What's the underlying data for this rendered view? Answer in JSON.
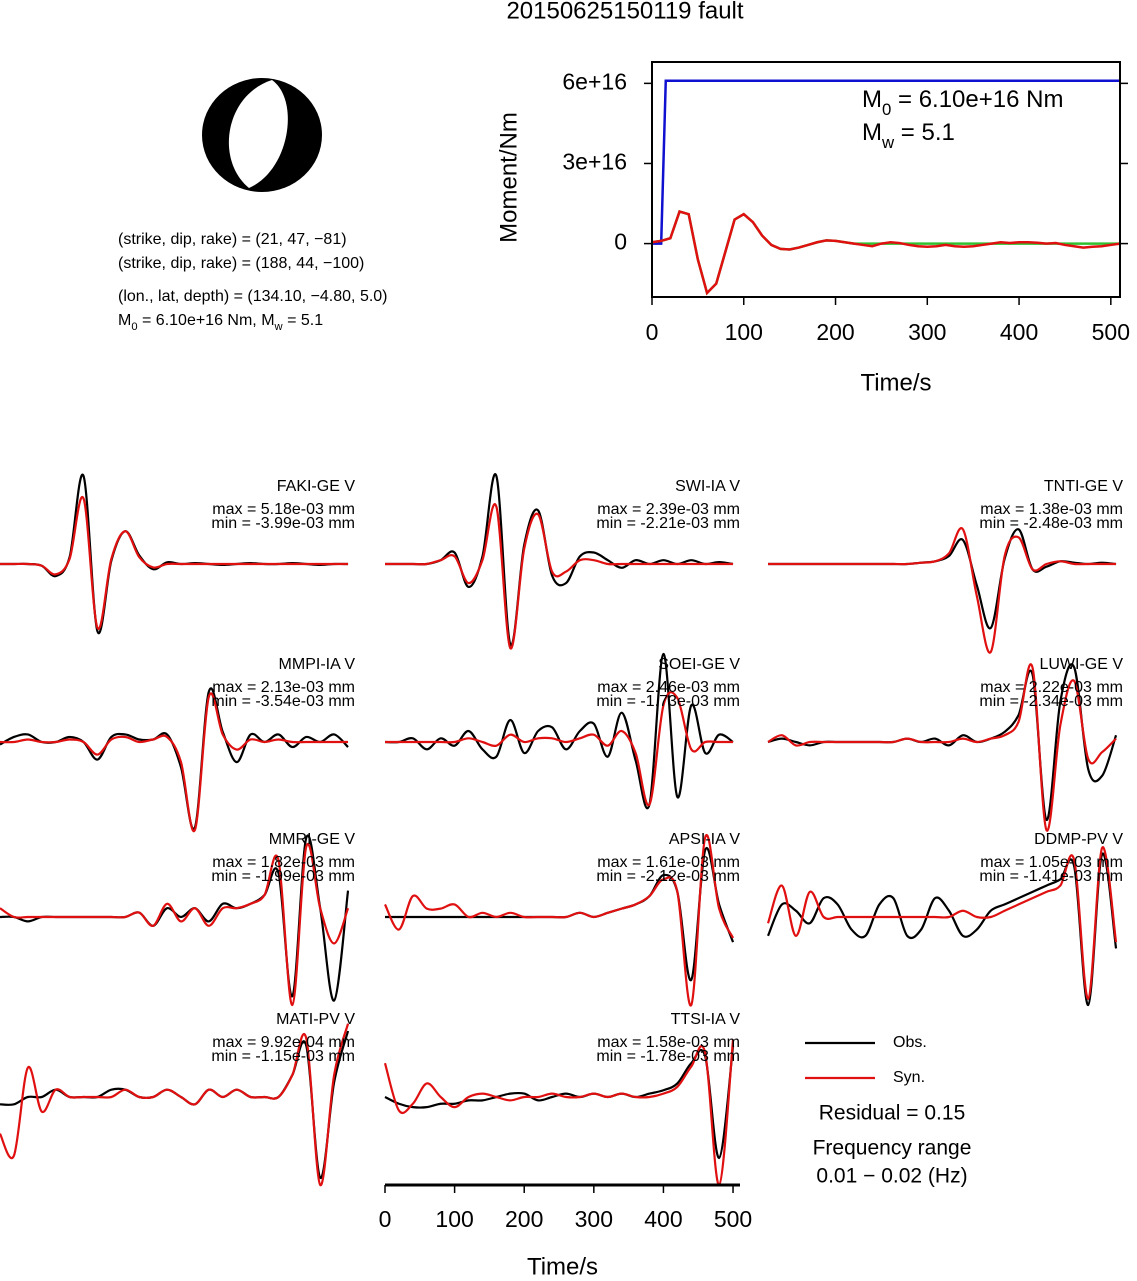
{
  "title": "20150625150119 fault",
  "info": [
    "(strike, dip, rake) = (21, 47, −81)",
    "(strike, dip, rake) = (188, 44, −100)",
    "(lon., lat, depth) = (134.10, −4.80, 5.0)"
  ],
  "info_moment": [
    "M",
    "0",
    " = 6.10e+16 Nm, M",
    "w",
    " = 5.1"
  ],
  "chart_data": [
    {
      "type": "line",
      "ylabel": "Moment/Nm",
      "xlabel": "Time/s",
      "xlim": [
        0,
        510
      ],
      "xticks": [
        0,
        100,
        200,
        300,
        400,
        500
      ],
      "ylim": [
        -2e+16,
        6.8e+16
      ],
      "yticks": [
        0,
        {
          "value": 3e+16,
          "label": "3e+16"
        },
        {
          "value": 6e+16,
          "label": "6e+16"
        }
      ],
      "annotations": [
        [
          "M",
          "0",
          " = 6.10e+16 Nm"
        ],
        [
          "M",
          "w",
          " = 5.1"
        ]
      ],
      "series": [
        {
          "color": "#1010d0",
          "x": [
            0,
            10,
            15,
            510
          ],
          "values": [
            0,
            0,
            6.1e+16,
            6.1e+16
          ]
        },
        {
          "color": "#30c030",
          "x": [
            0,
            10,
            20,
            30,
            40,
            50,
            60,
            70,
            80,
            90,
            100,
            110,
            120,
            130,
            140,
            150,
            160,
            170,
            180,
            190,
            200,
            210,
            220,
            510
          ],
          "values": [
            500000000000000.0,
            1000000000000000.0,
            2000000000000000.0,
            1.2e+16,
            1.1e+16,
            -6000000000000000.0,
            -1.85e+16,
            -1.5e+16,
            -3000000000000000.0,
            9000000000000000.0,
            1.1e+16,
            8000000000000000.0,
            3000000000000000.0,
            -500000000000000.0,
            -2000000000000000.0,
            -2200000000000000.0,
            -1500000000000000.0,
            -500000000000000.0,
            500000000000000.0,
            1200000000000000.0,
            1000000000000000.0,
            500000000000000.0,
            0,
            0
          ]
        },
        {
          "color": "#e01010",
          "x": [
            0,
            10,
            20,
            30,
            40,
            50,
            60,
            70,
            80,
            90,
            100,
            110,
            120,
            130,
            140,
            150,
            160,
            170,
            180,
            190,
            200,
            210,
            220,
            230,
            240,
            250,
            260,
            270,
            280,
            290,
            300,
            310,
            320,
            330,
            340,
            350,
            360,
            370,
            380,
            390,
            400,
            410,
            420,
            430,
            440,
            450,
            460,
            470,
            480,
            490,
            500,
            510
          ],
          "values": [
            500000000000000.0,
            1000000000000000.0,
            2000000000000000.0,
            1.2e+16,
            1.1e+16,
            -6000000000000000.0,
            -1.85e+16,
            -1.5e+16,
            -3000000000000000.0,
            9000000000000000.0,
            1.1e+16,
            8000000000000000.0,
            3000000000000000.0,
            -500000000000000.0,
            -2000000000000000.0,
            -2200000000000000.0,
            -1500000000000000.0,
            -500000000000000.0,
            500000000000000.0,
            1200000000000000.0,
            1000000000000000.0,
            500000000000000.0,
            0,
            -500000000000000.0,
            -1000000000000000.0,
            0,
            500000000000000.0,
            200000000000000.0,
            -500000000000000.0,
            -1000000000000000.0,
            -1200000000000000.0,
            -1000000000000000.0,
            -500000000000000.0,
            -1000000000000000.0,
            -1200000000000000.0,
            -1000000000000000.0,
            -500000000000000.0,
            0,
            500000000000000.0,
            200000000000000.0,
            500000000000000.0,
            500000000000000.0,
            300000000000000.0,
            0,
            200000000000000.0,
            -500000000000000.0,
            -1000000000000000.0,
            -1500000000000000.0,
            -1200000000000000.0,
            -1000000000000000.0,
            -500000000000000.0,
            0
          ]
        }
      ]
    },
    {
      "type": "waveforms",
      "xlabel": "Time/s",
      "xlim": [
        0,
        510
      ],
      "xticks": [
        0,
        100,
        200,
        300,
        400,
        500
      ],
      "x": [
        0,
        20,
        40,
        60,
        80,
        100,
        120,
        140,
        160,
        180,
        200,
        220,
        240,
        260,
        280,
        300,
        320,
        340,
        360,
        380,
        400,
        420,
        440,
        460,
        480,
        500
      ],
      "series": [
        {
          "name": "Obs.",
          "color": "#000000"
        },
        {
          "name": "Syn.",
          "color": "#e01010"
        }
      ],
      "residual": "Residual = 0.15",
      "freq_title": "Frequency range",
      "freq_range": "0.01 − 0.02 (Hz)",
      "panels": [
        {
          "label": "FAKI-GE V",
          "max": "max = 5.18e-03 mm",
          "min": "min = -3.99e-03 mm",
          "obs": [
            0,
            0,
            0,
            -0.1,
            -0.7,
            0.4,
            5.1,
            -3.9,
            0.2,
            1.9,
            0.5,
            -0.3,
            0.1,
            0,
            0.05,
            0,
            -0.05,
            0,
            0.05,
            0,
            0,
            0.05,
            0,
            -0.05,
            0,
            0
          ],
          "syn": [
            0,
            0,
            0,
            -0.1,
            -0.6,
            0.3,
            3.8,
            -3.7,
            0.3,
            1.9,
            0.4,
            -0.2,
            0,
            0,
            0,
            0,
            0,
            0,
            0,
            0,
            0,
            0,
            0,
            0,
            0,
            0
          ]
        },
        {
          "label": "SWI-IA V",
          "max": "max = 2.39e-03 mm",
          "min": "min = -2.21e-03 mm",
          "obs": [
            0,
            0,
            0,
            0,
            0.1,
            0.3,
            -0.6,
            0.2,
            2.3,
            -2.1,
            0.5,
            1.4,
            -0.3,
            -0.5,
            0.2,
            0.3,
            0.1,
            -0.1,
            0.1,
            0,
            0.1,
            0,
            0.1,
            0,
            0.05,
            0
          ],
          "syn": [
            0,
            0,
            0,
            0,
            0.1,
            0.2,
            -0.5,
            0.1,
            1.5,
            -2.2,
            0.4,
            1.3,
            -0.2,
            -0.2,
            0.1,
            0.1,
            0,
            0,
            0,
            0,
            0,
            0,
            0,
            0,
            0,
            0
          ]
        },
        {
          "label": "TNTI-GE V",
          "max": "max = 1.38e-03 mm",
          "min": "min = -2.48e-03 mm",
          "obs": [
            0,
            0,
            0,
            0,
            0,
            0,
            0,
            0,
            0,
            0,
            0,
            0.05,
            0.1,
            0.3,
            0.9,
            -0.8,
            -2.4,
            0.2,
            1.3,
            -0.2,
            -0.1,
            0.1,
            0.05,
            0,
            0.05,
            0
          ],
          "syn": [
            0,
            0,
            0,
            0,
            0,
            0,
            0,
            0,
            0,
            0,
            0,
            0.05,
            0.1,
            0.4,
            1.3,
            -1.2,
            -3.3,
            0.3,
            1.0,
            -0.2,
            0,
            0.1,
            0,
            0,
            0,
            0
          ]
        },
        {
          "label": "MMPI-IA V",
          "max": "max = 2.13e-03 mm",
          "min": "min = -3.54e-03 mm",
          "obs": [
            -0.1,
            0.2,
            0.3,
            0,
            0,
            0.2,
            0,
            -0.7,
            0.2,
            0.3,
            0.1,
            0.1,
            0.3,
            -1.0,
            -3.4,
            2.0,
            0.4,
            -0.8,
            0.3,
            0,
            0.3,
            -0.2,
            0.2,
            0,
            0.3,
            -0.2
          ],
          "syn": [
            0,
            0,
            0.1,
            0,
            0,
            0.1,
            0,
            -0.5,
            0.1,
            0.2,
            0,
            0.1,
            0.2,
            -0.8,
            -3.5,
            1.8,
            0.3,
            -0.3,
            0.1,
            0,
            0.1,
            0,
            0,
            0,
            0,
            0
          ]
        },
        {
          "label": "SOEI-GE V",
          "max": "max = 2.46e-03 mm",
          "min": "min = -1.73e-03 mm",
          "obs": [
            0,
            0,
            0.1,
            -0.2,
            0.1,
            -0.1,
            0.3,
            -0.2,
            -0.4,
            0.6,
            -0.3,
            0.3,
            0.4,
            -0.2,
            0.3,
            0.5,
            -0.4,
            0.8,
            -0.5,
            -1.7,
            2.4,
            -1.5,
            1.0,
            -0.3,
            0.2,
            0
          ],
          "syn": [
            0,
            0,
            0,
            0,
            0,
            0,
            0.1,
            0,
            -0.1,
            0.2,
            0,
            0.1,
            0.1,
            0,
            0.1,
            0.2,
            -0.1,
            0.3,
            -0.3,
            -1.7,
            1.0,
            1.2,
            -0.2,
            0,
            0,
            0
          ]
        },
        {
          "label": "LUWI-GE V",
          "max": "max = 2.22e-03 mm",
          "min": "min = -2.34e-03 mm",
          "obs": [
            0,
            0.1,
            0,
            -0.1,
            0,
            0,
            0,
            0,
            0,
            0,
            0.1,
            0,
            0.1,
            -0.1,
            0.2,
            0,
            0.1,
            0.3,
            0.8,
            2.0,
            -2.3,
            1.2,
            2.2,
            -0.8,
            -1.0,
            0.2
          ],
          "syn": [
            0,
            0.2,
            -0.1,
            0,
            0,
            0,
            0,
            0,
            0,
            0,
            0.1,
            0,
            0,
            0,
            0.1,
            0,
            0.1,
            0.2,
            0.6,
            2.2,
            -2.6,
            0.5,
            1.8,
            -0.5,
            -0.3,
            0.1
          ]
        },
        {
          "label": "MMRI-GE V",
          "max": "max = 1.82e-03 mm",
          "min": "min = -1.99e-03 mm",
          "obs": [
            0,
            0,
            -0.1,
            0,
            0,
            0,
            0,
            0,
            0,
            0,
            0.1,
            -0.2,
            0.2,
            0,
            0.2,
            -0.1,
            0.3,
            0.2,
            0.3,
            0.5,
            1.0,
            -1.8,
            1.8,
            0.2,
            -1.9,
            0.6
          ],
          "syn": [
            0.2,
            0,
            0,
            0,
            0,
            0,
            0,
            0,
            0,
            0,
            0.1,
            -0.2,
            0.3,
            -0.1,
            0.2,
            -0.2,
            0.2,
            0.2,
            0.3,
            0.5,
            1.3,
            -2.0,
            1.6,
            0.2,
            -0.6,
            0.2
          ]
        },
        {
          "label": "APSI-IA V",
          "max": "max = 1.61e-03 mm",
          "min": "min = -2.12e-03 mm",
          "obs": [
            0,
            0,
            0,
            0,
            0,
            0,
            0,
            0,
            0,
            0,
            0,
            0,
            0,
            0,
            0.1,
            0,
            0.1,
            0.2,
            0.3,
            0.5,
            1.0,
            0.6,
            -1.5,
            1.6,
            0.3,
            -0.6
          ],
          "syn": [
            0.3,
            -0.3,
            0.5,
            0.2,
            0.2,
            0.3,
            0,
            0.1,
            0,
            0.1,
            0,
            0,
            0,
            0,
            0.1,
            0,
            0.1,
            0.2,
            0.3,
            0.5,
            0.9,
            0.6,
            -2.1,
            1.9,
            0.2,
            -0.5
          ]
        },
        {
          "label": "DDMP-PV V",
          "max": "max = 1.05e-03 mm",
          "min": "min = -1.41e-03 mm",
          "obs": [
            -0.3,
            0.2,
            0.1,
            -0.1,
            0.3,
            0.2,
            -0.2,
            -0.3,
            0.2,
            0.3,
            -0.3,
            -0.2,
            0.3,
            0.1,
            -0.3,
            -0.2,
            0.1,
            0.2,
            0.3,
            0.4,
            0.5,
            0.6,
            0.8,
            -1.4,
            1.0,
            -0.5
          ],
          "syn": [
            -0.1,
            0.5,
            -0.3,
            0.4,
            0,
            0,
            0,
            0,
            0,
            0,
            0,
            0,
            0,
            0,
            0.1,
            0,
            0,
            0.1,
            0.2,
            0.3,
            0.4,
            0.5,
            0.9,
            -1.3,
            1.1,
            -0.4
          ]
        },
        {
          "label": "MATI-PV V",
          "max": "max = 9.92e-04 mm",
          "min": "min = -1.15e-03 mm",
          "obs": [
            -0.1,
            -0.1,
            0,
            0,
            0.1,
            0,
            0,
            0,
            0.1,
            0.1,
            0,
            0,
            0.1,
            0,
            -0.1,
            0.1,
            0,
            0.1,
            0,
            0,
            0,
            0.3,
            0.7,
            -1.1,
            0.2,
            0.9
          ],
          "syn": [
            -0.5,
            -0.8,
            0.4,
            -0.2,
            0.1,
            0,
            0,
            0,
            0,
            0.1,
            0,
            0,
            0.1,
            0,
            -0.1,
            0.1,
            0,
            0.1,
            0,
            0,
            0,
            0.3,
            0.8,
            -1.2,
            0.3,
            1.0
          ]
        },
        {
          "label": "TTSI-IA V",
          "max": "max = 1.58e-03 mm",
          "min": "min = -1.78e-03 mm",
          "obs": [
            0,
            -0.2,
            -0.3,
            -0.3,
            -0.2,
            -0.2,
            -0.1,
            -0.1,
            0,
            0.1,
            0.1,
            -0.1,
            0,
            0.1,
            0,
            0.1,
            0,
            0.1,
            0,
            0.1,
            0.2,
            0.4,
            1.0,
            1.2,
            -1.8,
            1.5
          ],
          "syn": [
            1.0,
            -0.4,
            -0.2,
            0.4,
            0,
            -0.3,
            0,
            0.1,
            0,
            -0.1,
            0,
            0,
            0.1,
            0,
            0,
            0.1,
            0,
            0.1,
            0,
            0,
            0.1,
            0.3,
            0.9,
            1.3,
            -2.6,
            1.7
          ]
        }
      ]
    }
  ]
}
